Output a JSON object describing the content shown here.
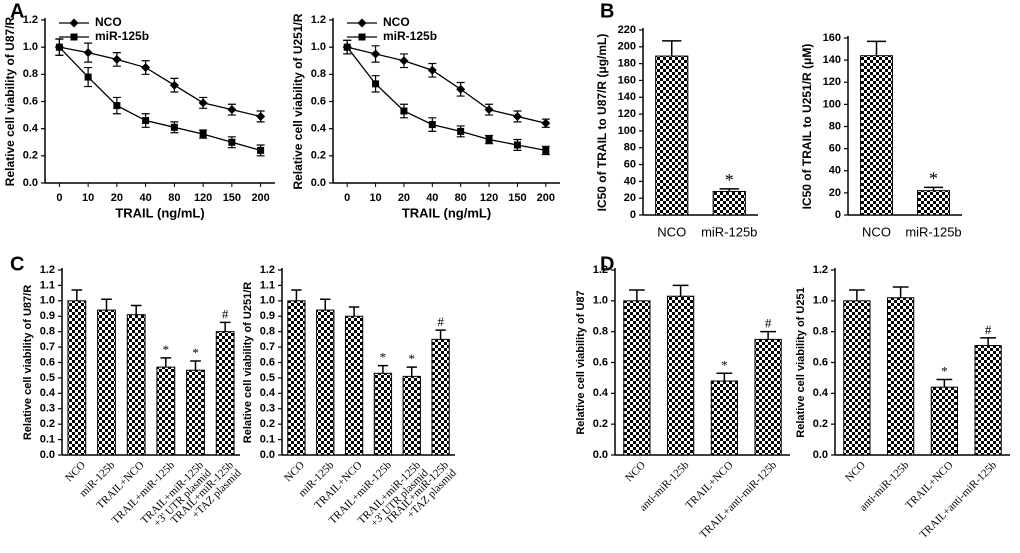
{
  "chart_data": [
    {
      "type": "line",
      "panel": "A",
      "ylabel": "Relative cell viability of U87/R",
      "xlabel": "TRAIL (ng/mL)",
      "categories": [
        "0",
        "10",
        "20",
        "40",
        "80",
        "120",
        "150",
        "200"
      ],
      "series": [
        {
          "name": "NCO",
          "color": "#000000",
          "marker": "diamond",
          "values": [
            1.0,
            0.96,
            0.91,
            0.85,
            0.72,
            0.59,
            0.54,
            0.49
          ],
          "errors": [
            0.06,
            0.07,
            0.05,
            0.05,
            0.05,
            0.04,
            0.04,
            0.04
          ]
        },
        {
          "name": "miR-125b",
          "color": "#000000",
          "marker": "square",
          "values": [
            1.0,
            0.78,
            0.57,
            0.46,
            0.41,
            0.36,
            0.3,
            0.24
          ],
          "errors": [
            0.06,
            0.07,
            0.06,
            0.05,
            0.04,
            0.03,
            0.04,
            0.04
          ]
        }
      ],
      "ylim": [
        0,
        1.2
      ],
      "yticks": [
        {
          "value": 0,
          "label": "0.0"
        },
        0.2,
        0.4,
        0.6,
        0.8,
        {
          "value": 1,
          "label": "1.0"
        },
        1.2
      ],
      "legend": "upper left"
    },
    {
      "type": "line",
      "ylabel": "Relative cell viability of U251/R",
      "xlabel": "TRAIL (ng/mL)",
      "categories": [
        "0",
        "10",
        "20",
        "40",
        "80",
        "120",
        "150",
        "200"
      ],
      "series": [
        {
          "name": "NCO",
          "color": "#000000",
          "marker": "diamond",
          "values": [
            1.0,
            0.95,
            0.9,
            0.83,
            0.69,
            0.54,
            0.49,
            0.44
          ],
          "errors": [
            0.05,
            0.06,
            0.05,
            0.05,
            0.05,
            0.04,
            0.04,
            0.03
          ]
        },
        {
          "name": "miR-125b",
          "color": "#000000",
          "marker": "square",
          "values": [
            1.0,
            0.73,
            0.53,
            0.43,
            0.38,
            0.32,
            0.28,
            0.24
          ],
          "errors": [
            0.05,
            0.06,
            0.05,
            0.05,
            0.04,
            0.03,
            0.04,
            0.03
          ]
        }
      ],
      "ylim": [
        0,
        1.2
      ],
      "yticks": [
        {
          "value": 0,
          "label": "0.0"
        },
        0.2,
        0.4,
        0.6,
        0.8,
        {
          "value": 1,
          "label": "1.0"
        },
        1.2
      ],
      "legend": "upper left"
    },
    {
      "type": "bar",
      "panel": "B",
      "ylabel": "IC50 of TRAIL to U87/R (μg/mL)",
      "categories": [
        "NCO",
        "miR-125b"
      ],
      "values": [
        189,
        28
      ],
      "errors": [
        18,
        3
      ],
      "annotations": [
        null,
        "*"
      ],
      "ylim": [
        0,
        220
      ],
      "yticks": [
        0,
        20,
        40,
        60,
        80,
        100,
        120,
        140,
        160,
        180,
        200,
        220
      ]
    },
    {
      "type": "bar",
      "ylabel": "IC50 of TRAIL to U251/R (μM)",
      "categories": [
        "NCO",
        "miR-125b"
      ],
      "values": [
        144,
        22
      ],
      "errors": [
        13,
        3
      ],
      "annotations": [
        null,
        "*"
      ],
      "ylim": [
        0,
        160
      ],
      "yticks": [
        0,
        20,
        40,
        60,
        80,
        100,
        120,
        140,
        160
      ]
    },
    {
      "type": "bar",
      "panel": "C",
      "ylabel": "Relative cell viability of U87/R",
      "categories": [
        "NCO",
        "miR-125b",
        "TRAIL+NCO",
        "TRAIL+miR-125b",
        "TRAIL+miR-125b\n+3' UTR plasmid",
        "TRAIL+miR-125b\n+TAZ plasmid"
      ],
      "values": [
        1.0,
        0.94,
        0.91,
        0.57,
        0.55,
        0.8
      ],
      "errors": [
        0.07,
        0.07,
        0.06,
        0.06,
        0.06,
        0.06
      ],
      "annotations": [
        null,
        null,
        null,
        "*",
        "*",
        "#"
      ],
      "ylim": [
        0,
        1.2
      ],
      "yticks": [
        {
          "value": 0,
          "label": "0.0"
        },
        0.1,
        0.2,
        0.3,
        0.4,
        0.5,
        0.6,
        0.7,
        0.8,
        0.9,
        {
          "value": 1,
          "label": "1.0"
        },
        1.1,
        1.2
      ]
    },
    {
      "type": "bar",
      "ylabel": "Relative cell viability of U251/R",
      "categories": [
        "NCO",
        "miR-125b",
        "TRAIL+NCO",
        "TRAIL+miR-125b",
        "TRAIL+miR-125b\n+3' UTR plasmid",
        "TRAIL+miR-125b\n+TAZ plasmid"
      ],
      "values": [
        1.0,
        0.94,
        0.9,
        0.53,
        0.51,
        0.75
      ],
      "errors": [
        0.07,
        0.07,
        0.06,
        0.05,
        0.06,
        0.06
      ],
      "annotations": [
        null,
        null,
        null,
        "*",
        "*",
        "#"
      ],
      "ylim": [
        0,
        1.2
      ],
      "yticks": [
        {
          "value": 0,
          "label": "0.0"
        },
        0.1,
        0.2,
        0.3,
        0.4,
        0.5,
        0.6,
        0.7,
        0.8,
        0.9,
        {
          "value": 1,
          "label": "1.0"
        },
        1.1,
        1.2
      ]
    },
    {
      "type": "bar",
      "panel": "D",
      "ylabel": "Relative cell viability of U87",
      "categories": [
        "NCO",
        "anti-miR-125b",
        "TRAIL+NCO",
        "TRAIL+anti-miR-125b"
      ],
      "values": [
        1.0,
        1.03,
        0.48,
        0.75
      ],
      "errors": [
        0.07,
        0.07,
        0.05,
        0.05
      ],
      "annotations": [
        null,
        null,
        "*",
        "#"
      ],
      "ylim": [
        0,
        1.2
      ],
      "yticks": [
        {
          "value": 0,
          "label": "0.0"
        },
        0.2,
        0.4,
        0.6,
        0.8,
        {
          "value": 1,
          "label": "1.0"
        },
        1.2
      ]
    },
    {
      "type": "bar",
      "ylabel": "Relative cell viability of U251",
      "categories": [
        "NCO",
        "anti-miR-125b",
        "TRAIL+NCO",
        "TRAIL+anti-miR-125b"
      ],
      "values": [
        1.0,
        1.02,
        0.44,
        0.71
      ],
      "errors": [
        0.07,
        0.07,
        0.05,
        0.05
      ],
      "annotations": [
        null,
        null,
        "*",
        "#"
      ],
      "ylim": [
        0,
        1.2
      ],
      "yticks": [
        {
          "value": 0,
          "label": "0.0"
        },
        0.2,
        0.4,
        0.6,
        0.8,
        {
          "value": 1,
          "label": "1.0"
        },
        1.2
      ]
    }
  ]
}
